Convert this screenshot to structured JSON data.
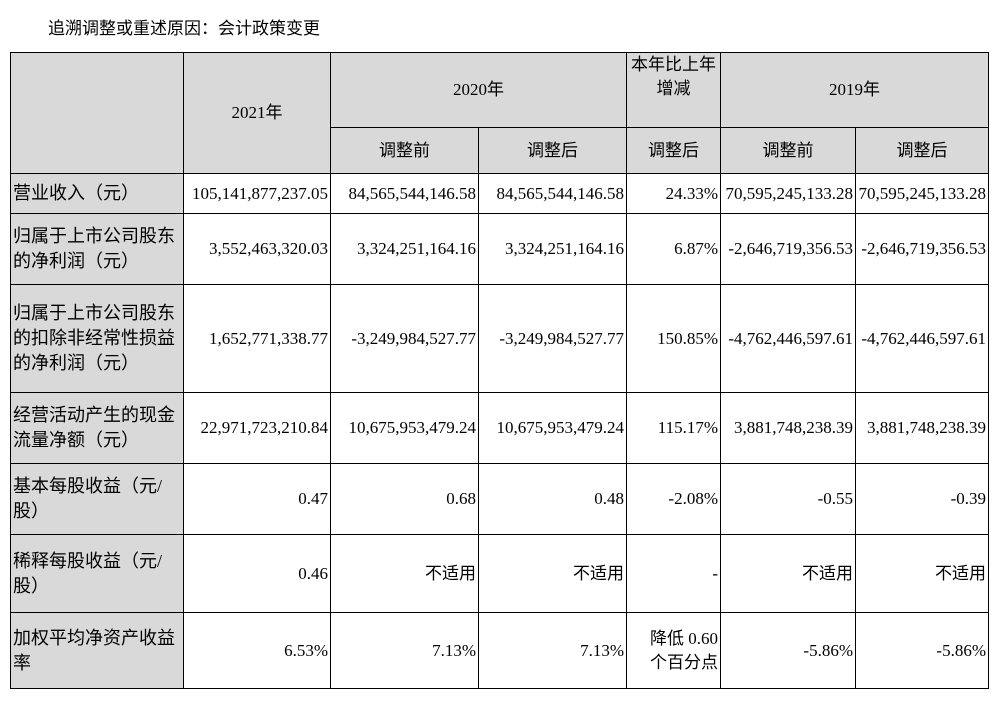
{
  "caption": "追溯调整或重述原因：会计政策变更",
  "table": {
    "header_top": [
      "",
      "2021年",
      "2020年",
      "本年比上年增减",
      "2019年"
    ],
    "header_sub": [
      "调整前",
      "调整后",
      "调整后",
      "调整前",
      "调整后"
    ],
    "rows": [
      [
        "营业收入（元）",
        "105,141,877,237.05",
        "84,565,544,146.58",
        "84,565,544,146.58",
        "24.33%",
        "70,595,245,133.28",
        "70,595,245,133.28"
      ],
      [
        "归属于上市公司股东的净利润（元）",
        "3,552,463,320.03",
        "3,324,251,164.16",
        "3,324,251,164.16",
        "6.87%",
        "-2,646,719,356.53",
        "-2,646,719,356.53"
      ],
      [
        "归属于上市公司股东的扣除非经常性损益的净利润（元）",
        "1,652,771,338.77",
        "-3,249,984,527.77",
        "-3,249,984,527.77",
        "150.85%",
        "-4,762,446,597.61",
        "-4,762,446,597.61"
      ],
      [
        "经营活动产生的现金流量净额（元）",
        "22,971,723,210.84",
        "10,675,953,479.24",
        "10,675,953,479.24",
        "115.17%",
        "3,881,748,238.39",
        "3,881,748,238.39"
      ],
      [
        "基本每股收益（元/股）",
        "0.47",
        "0.68",
        "0.48",
        "-2.08%",
        "-0.55",
        "-0.39"
      ],
      [
        "稀释每股收益（元/股）",
        "0.46",
        "不适用",
        "不适用",
        "-",
        "不适用",
        "不适用"
      ],
      [
        "加权平均净资产收益率",
        "6.53%",
        "7.13%",
        "7.13%",
        "降低 0.60 个百分点",
        "-5.86%",
        "-5.86%"
      ]
    ]
  }
}
